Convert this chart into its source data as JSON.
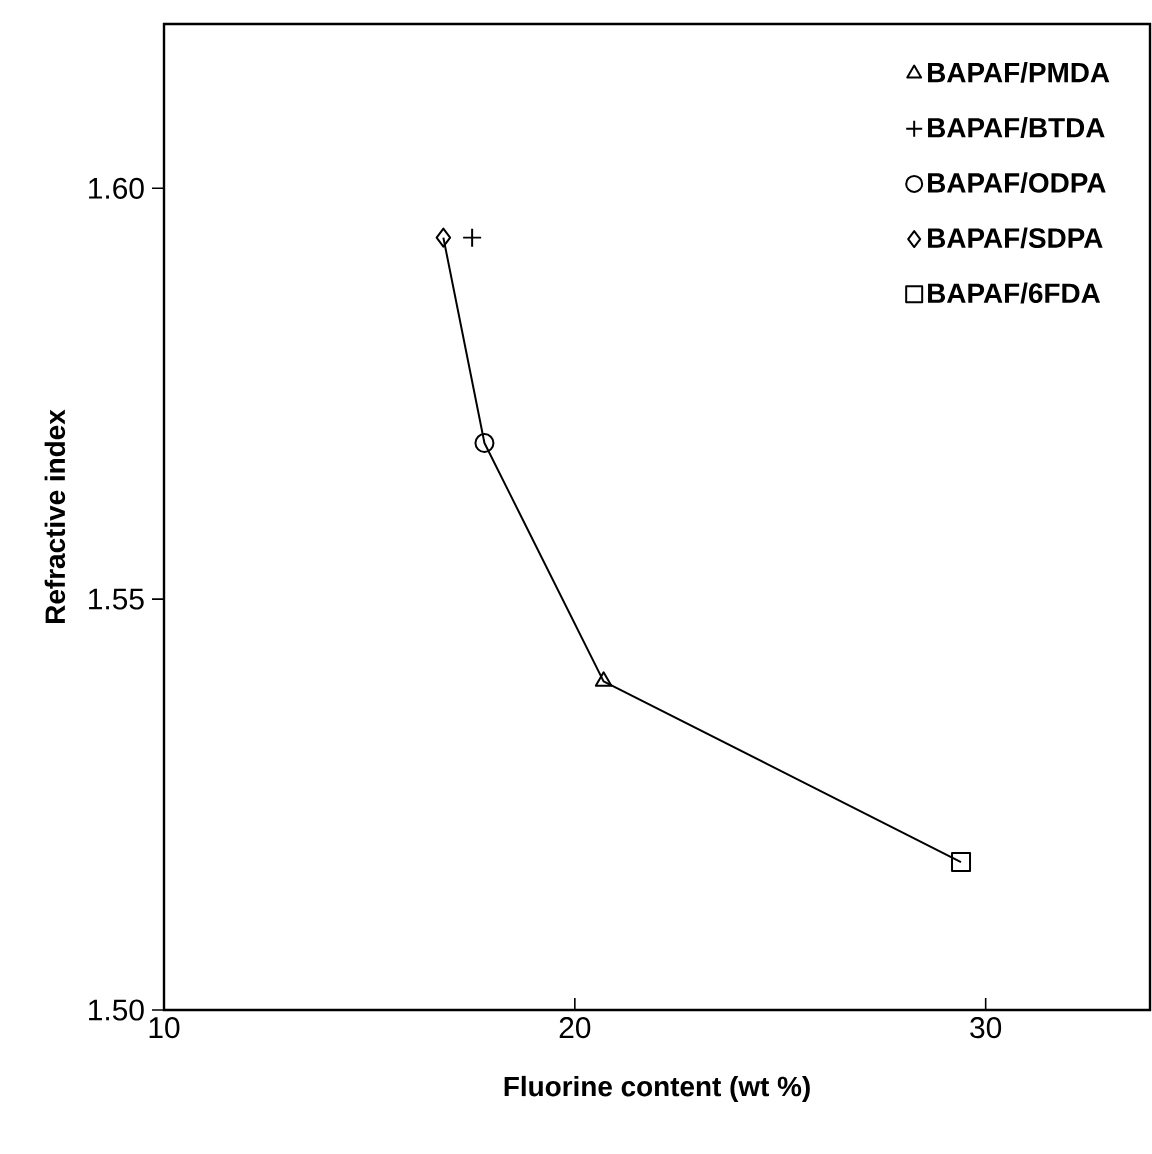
{
  "chart_data": {
    "type": "scatter",
    "xlabel": "Fluorine content (wt %)",
    "ylabel": "Refractive index",
    "xlim": [
      10,
      34
    ],
    "ylim": [
      1.5,
      1.62
    ],
    "xticks": [
      10,
      20,
      30
    ],
    "yticks": [
      {
        "value": 1.5,
        "label": "1.50"
      },
      {
        "value": 1.55,
        "label": "1.55"
      },
      {
        "value": 1.6,
        "label": "1.60"
      }
    ],
    "legend": "top right",
    "series": [
      {
        "type": "line",
        "color": "#000000",
        "marker": "none",
        "line_style": "solid",
        "x": [
          16.8,
          17.8,
          20.7,
          29.4
        ],
        "values": [
          1.594,
          1.569,
          1.54,
          1.518
        ]
      },
      {
        "name": "BAPAF/PMDA",
        "color": "#000000",
        "marker": "triangle",
        "x": [
          20.7
        ],
        "values": [
          1.54
        ]
      },
      {
        "name": "BAPAF/BTDA",
        "color": "#000000",
        "marker": "cross",
        "x": [
          17.5
        ],
        "values": [
          1.594
        ]
      },
      {
        "name": "BAPAF/ODPA",
        "color": "#000000",
        "marker": "circle",
        "x": [
          17.8
        ],
        "values": [
          1.569
        ]
      },
      {
        "name": "BAPAF/SDPA",
        "color": "#000000",
        "marker": "diamond",
        "x": [
          16.8
        ],
        "values": [
          1.594
        ]
      },
      {
        "name": "BAPAF/6FDA",
        "color": "#000000",
        "marker": "square",
        "x": [
          29.4
        ],
        "values": [
          1.518
        ]
      }
    ]
  }
}
